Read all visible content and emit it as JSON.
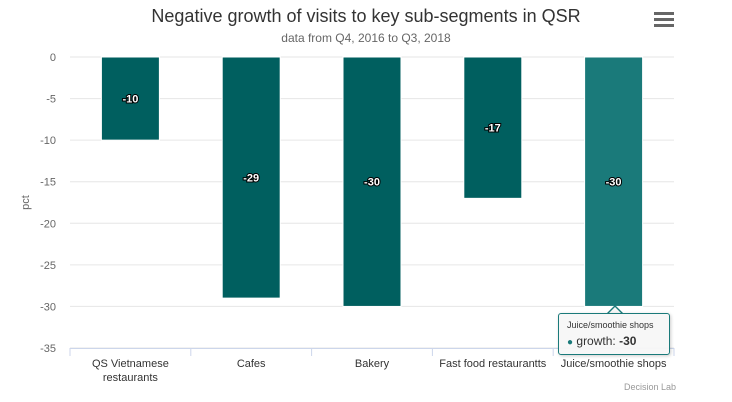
{
  "chart_data": {
    "type": "bar",
    "title": "Negative growth of visits to key sub-segments in QSR",
    "subtitle": "data from Q4, 2016 to Q3, 2018",
    "ylabel": "pct",
    "xlabel": "",
    "ylim": [
      -35,
      0
    ],
    "yticks": [
      0,
      -5,
      -10,
      -15,
      -20,
      -25,
      -30,
      -35
    ],
    "grid": true,
    "categories": [
      "QS Vietnamese restaurants",
      "Cafes",
      "Bakery",
      "Fast food restaurantts",
      "Juice/smoothie shops"
    ],
    "category_lines": [
      [
        "QS Vietnamese",
        "restaurants"
      ],
      [
        "Cafes"
      ],
      [
        "Bakery"
      ],
      [
        "Fast food restaurantts"
      ],
      [
        "Juice/smoothie shops"
      ]
    ],
    "series": [
      {
        "name": "growth",
        "values": [
          -10,
          -29,
          -30,
          -17,
          -30
        ]
      }
    ],
    "data_labels": [
      "-10",
      "-29",
      "-30",
      "-17",
      "-30"
    ],
    "bar_color": "#005f5f",
    "highlight_color": "#1a7a7a",
    "highlighted_index": 4
  },
  "tooltip": {
    "category": "Juice/smoothie shops",
    "series_name": "growth",
    "value": "-30"
  },
  "credits": "Decision Lab",
  "menu_icon": "hamburger-menu-icon"
}
